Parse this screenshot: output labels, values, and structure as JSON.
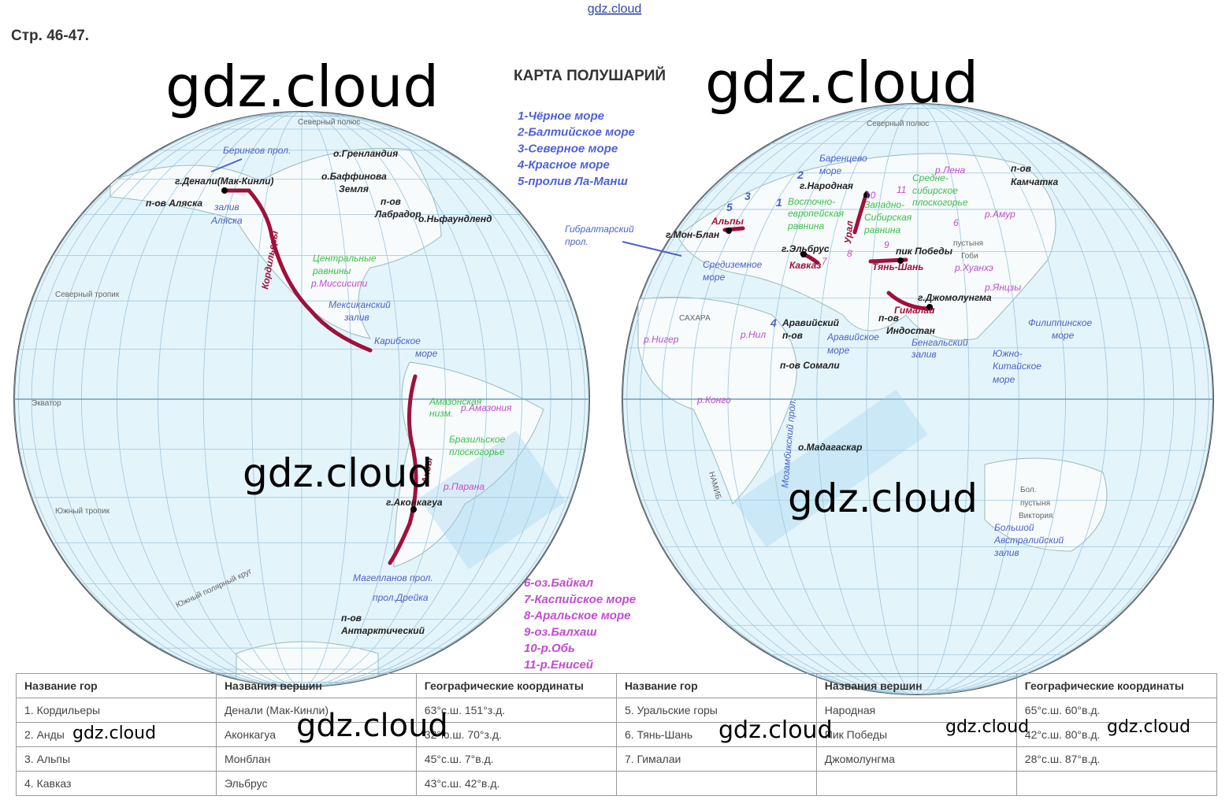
{
  "site_mark": "gdz.cloud",
  "page_ref": "Стр. 46-47.",
  "map_title": "КАРТА ПОЛУШАРИЙ",
  "watermarks": [
    "gdz.cloud",
    "gdz.cloud",
    "gdz.cloud",
    "gdz.cloud",
    "gdz.cloud",
    "gdz.cloud",
    "gdz.cloud",
    "gdz.cloud",
    "gdz.cloud"
  ],
  "legend_top": [
    "1-Чёрное море",
    "2-Балтийское море",
    "3-Северное море",
    "4-Красное море",
    "5-пролив Ла-Манш"
  ],
  "legend_bottom": [
    "6-оз.Байкал",
    "7-Каспийское море",
    "8-Аральское море",
    "9-оз.Балхаш",
    "10-р.Обь",
    "11-р.Енисей"
  ],
  "map_labels": [
    "Северный полюс",
    "Берингов прол.",
    "о.Гренландия",
    "о.Баффинова",
    "Земля",
    "г.Денали(Мак-Кинли)",
    "п-ов Аляска",
    "залив",
    "Аляска",
    "п-ов",
    "Лабрадор",
    "о.Ньфаундленд",
    "Кордильеры",
    "Центральные",
    "равнины",
    "р.Миссисипи",
    "Мексиканский",
    "залив",
    "Северный тропик",
    "Карибское",
    "море",
    "Экватор",
    "Амазонская",
    "низм.",
    "р.Амазония",
    "Бразильское",
    "плоскогорье",
    "Анды",
    "р.Парана",
    "г.Аконкагуа",
    "Южный тропик",
    "Магелланов прол.",
    "прол.Дрейка",
    "п-ов",
    "Антарктический",
    "Южный полярный круг",
    "Северный полюс",
    "Баренцево",
    "море",
    "г.Народная",
    "Восточно-",
    "европейская",
    "равнина",
    "Урал",
    "Западно-",
    "Сибирская",
    "равнина",
    "Средне-",
    "сибирское",
    "плоскогорье",
    "р.Лена",
    "п-ов",
    "Камчатка",
    "р.Амур",
    "Гибралтарский",
    "прол.",
    "г.Мон-Блан",
    "Альпы",
    "г.Эльбрус",
    "Кавказ",
    "пик Победы",
    "Тянь-Шань",
    "пустыня",
    "Гоби",
    "р.Хуанхэ",
    "Средиземное",
    "море",
    "САХАРА",
    "г.Джомолунгма",
    "Гималаи",
    "р.Янцзы",
    "Аравийский",
    "п-ов",
    "р.Нил",
    "р.Нигер",
    "Аравийское",
    "море",
    "п-ов",
    "Индостан",
    "Бенгальский",
    "залив",
    "Филиппинское",
    "море",
    "Южно-",
    "Китайское",
    "море",
    "п-ов Сомали",
    "р.Конго",
    "Мозамбикский прол.",
    "о.Мадагаскар",
    "НАМИБ",
    "Бол.",
    "пустыня",
    "Виктория",
    "Большой",
    "Австралийский",
    "залив",
    "3",
    "5",
    "1",
    "2",
    "4",
    "10",
    "11",
    "6",
    "7",
    "8",
    "9"
  ],
  "table": {
    "headers": [
      "Название гор",
      "Названия вершин",
      "Географические координаты",
      "Название гор",
      "Названия вершин",
      "Географические координаты"
    ],
    "rows": [
      [
        "1. Кордильеры",
        "Денали (Мак-Кинли)",
        "63°с.ш. 151°з.д.",
        "5. Уральские горы",
        "Народная",
        "65°с.ш. 60°в.д."
      ],
      [
        "2. Анды",
        "Аконкагуа",
        "32°ю.ш. 70°з.д.",
        "6. Тянь-Шань",
        "Пик Победы",
        "42°с.ш. 80°в.д."
      ],
      [
        "3. Альпы",
        "Монблан",
        "45°с.ш. 7°в.д.",
        "7. Гималаи",
        "Джомолунгма",
        "28°с.ш. 87°в.д."
      ],
      [
        "4. Кавказ",
        "Эльбрус",
        "43°с.ш. 42°в.д."
      ]
    ]
  }
}
